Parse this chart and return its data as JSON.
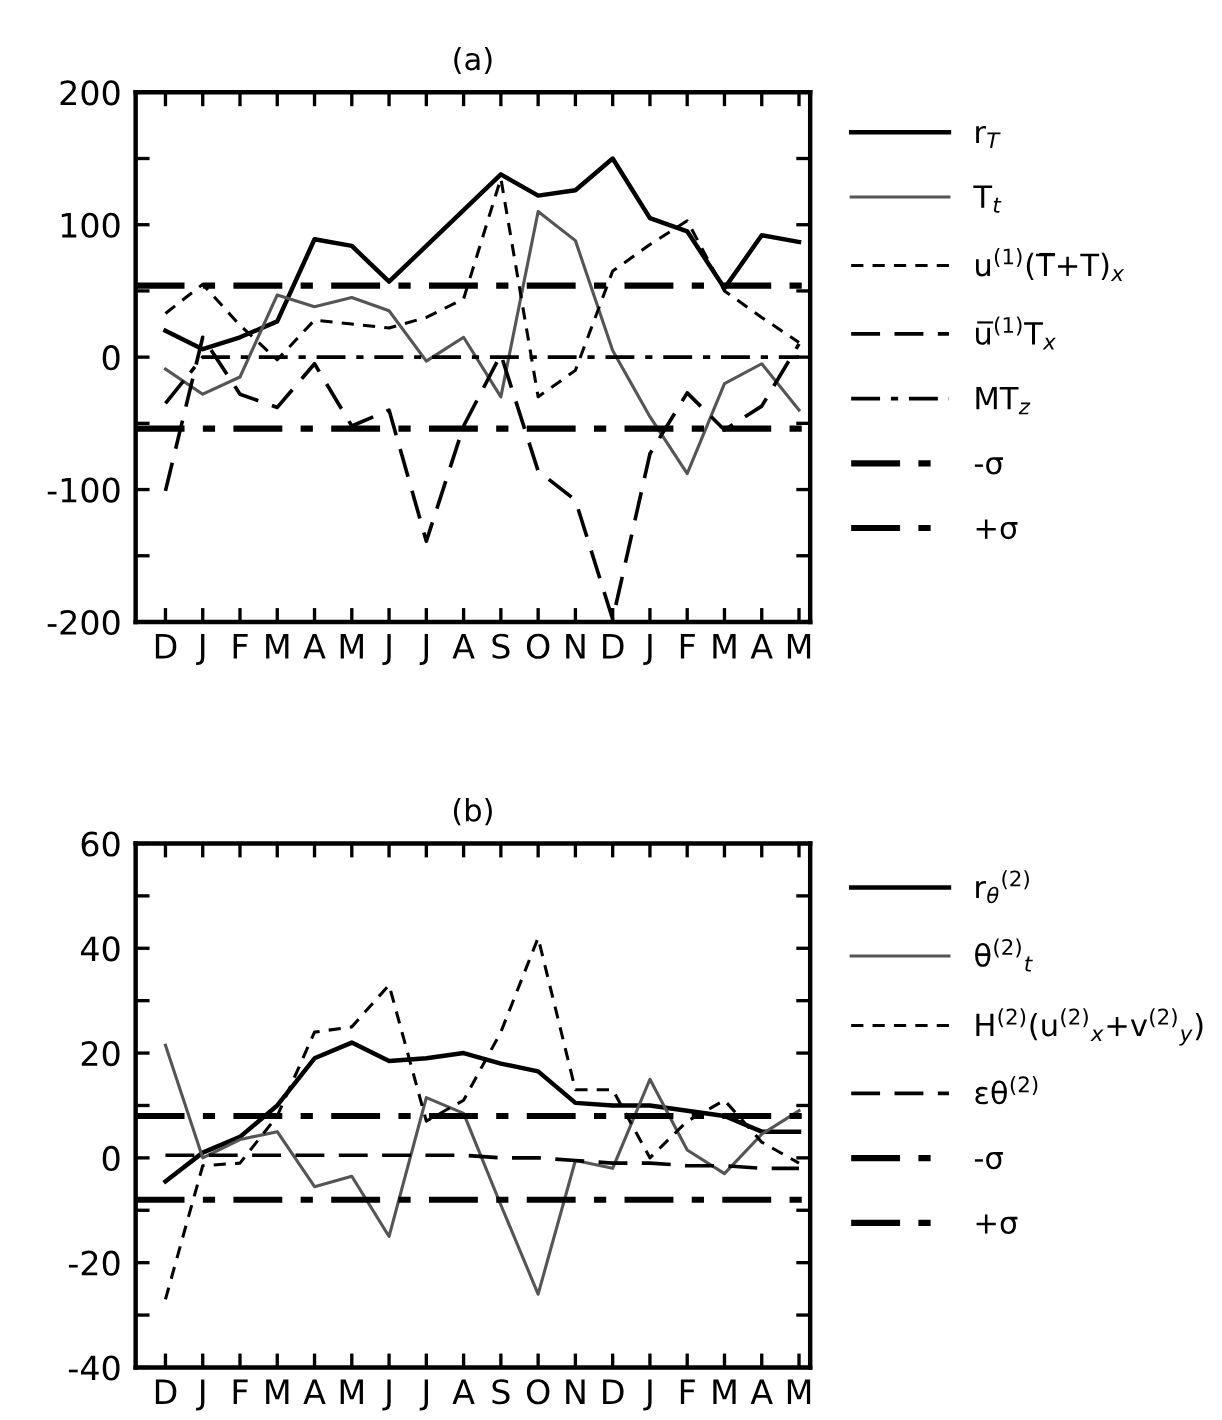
{
  "chart_data": [
    {
      "type": "line",
      "title": "(a)",
      "categories": [
        "D",
        "J",
        "F",
        "M",
        "A",
        "M",
        "J",
        "J",
        "A",
        "S",
        "O",
        "N",
        "D",
        "J",
        "F",
        "M",
        "A",
        "M"
      ],
      "ylim": [
        -200,
        200
      ],
      "yticks": [
        -200,
        {
          "value": -150,
          "label": null
        },
        -100,
        {
          "value": -50,
          "label": null
        },
        0,
        {
          "value": 50,
          "label": null
        },
        100,
        {
          "value": 150,
          "label": null
        },
        200
      ],
      "grid": false,
      "legend": "right",
      "marker": "none",
      "series": [
        {
          "name": "r$_{T}$",
          "color": "#000000",
          "line_style": "solid",
          "values": [
            20,
            6,
            15,
            27,
            89,
            84,
            57,
            84,
            111,
            138,
            122,
            126,
            150,
            105,
            95,
            52,
            92,
            87
          ]
        },
        {
          "name": "T$_{t}$",
          "color": "#555555",
          "line_style": "solid",
          "values": [
            -9,
            -28,
            -15,
            47,
            38,
            45,
            35,
            -3,
            15,
            -30,
            110,
            88,
            5,
            -45,
            -88,
            -20,
            -5,
            -40
          ]
        },
        {
          "name": "u$^{(1)}$(T̅+T)$_{x}$",
          "color": "#000000",
          "line_style": "dashed",
          "values": [
            33,
            55,
            24,
            -2,
            28,
            25,
            22,
            30,
            44,
            135,
            -30,
            -10,
            65,
            85,
            103,
            50,
            30,
            11
          ]
        },
        {
          "name": "u̅$^{(1)}$T$_{x}$",
          "color": "#000000",
          "line_style": "long dashed",
          "values": [
            -101,
            15,
            -28,
            -38,
            -5,
            -52,
            -40,
            -139,
            -52,
            2,
            -86,
            -108,
            -198,
            -73,
            -27,
            -55,
            -37,
            10
          ]
        },
        {
          "name": "MT$_{z}$",
          "color": "#000000",
          "line_style": "dashdot",
          "values": [
            -35,
            0,
            0,
            0,
            0,
            0,
            0,
            0,
            0,
            0,
            0,
            0,
            0,
            0,
            0,
            0,
            0,
            0
          ]
        }
      ],
      "ref_lines": [
        {
          "axis": "y",
          "value": -54,
          "label": "-σ",
          "color": "#000000",
          "line_style": "dashdot"
        },
        {
          "axis": "y",
          "value": 54,
          "label": "+σ",
          "color": "#000000",
          "line_style": "dashdot"
        }
      ]
    },
    {
      "type": "line",
      "title": "(b)",
      "categories": [
        "D",
        "J",
        "F",
        "M",
        "A",
        "M",
        "J",
        "J",
        "A",
        "S",
        "O",
        "N",
        "D",
        "J",
        "F",
        "M",
        "A",
        "M"
      ],
      "ylim": [
        -40,
        60
      ],
      "yticks": [
        -40,
        {
          "value": -30,
          "label": null
        },
        -20,
        {
          "value": -10,
          "label": null
        },
        0,
        {
          "value": 10,
          "label": null
        },
        20,
        {
          "value": 30,
          "label": null
        },
        40,
        {
          "value": 50,
          "label": null
        },
        60
      ],
      "grid": false,
      "legend": "right",
      "marker": "none",
      "series": [
        {
          "name": "r$_{θ}$$^{(2)}$",
          "color": "#000000",
          "line_style": "solid",
          "values": [
            -4.5,
            1,
            4,
            10,
            19,
            22,
            18.5,
            19,
            20,
            18,
            16.5,
            10.5,
            10,
            10,
            9,
            8,
            5,
            5
          ]
        },
        {
          "name": "θ$^{(2)}$$_{t}$",
          "color": "#555555",
          "line_style": "solid",
          "values": [
            21.5,
            0,
            3.5,
            5,
            -5.5,
            -3.5,
            -15,
            11.5,
            8.5,
            -9,
            -26,
            -0.5,
            -2,
            15,
            1.5,
            -3,
            4.5,
            9
          ]
        },
        {
          "name": "H$^{(2)}$(u$^{(2)}$$_{x}$+v$^{(2)}$$_{y}$)",
          "color": "#000000",
          "line_style": "dashed",
          "values": [
            -27,
            -1.5,
            -1,
            8,
            24,
            25,
            33,
            7,
            11,
            24,
            42,
            13,
            13,
            0,
            7,
            11,
            3,
            -1
          ]
        },
        {
          "name": "εθ$^{(2)}$",
          "color": "#000000",
          "line_style": "long dashed",
          "values": [
            0.5,
            0.5,
            0.5,
            0.5,
            0.5,
            0.5,
            0.5,
            0.5,
            0.5,
            0,
            0,
            -0.5,
            -1,
            -1,
            -1.5,
            -1.5,
            -2,
            -2
          ]
        }
      ],
      "ref_lines": [
        {
          "axis": "y",
          "value": -8,
          "label": "-σ",
          "color": "#000000",
          "line_style": "dashdot"
        },
        {
          "axis": "y",
          "value": 8,
          "label": "+σ",
          "color": "#000000",
          "line_style": "dashdot"
        }
      ]
    }
  ]
}
